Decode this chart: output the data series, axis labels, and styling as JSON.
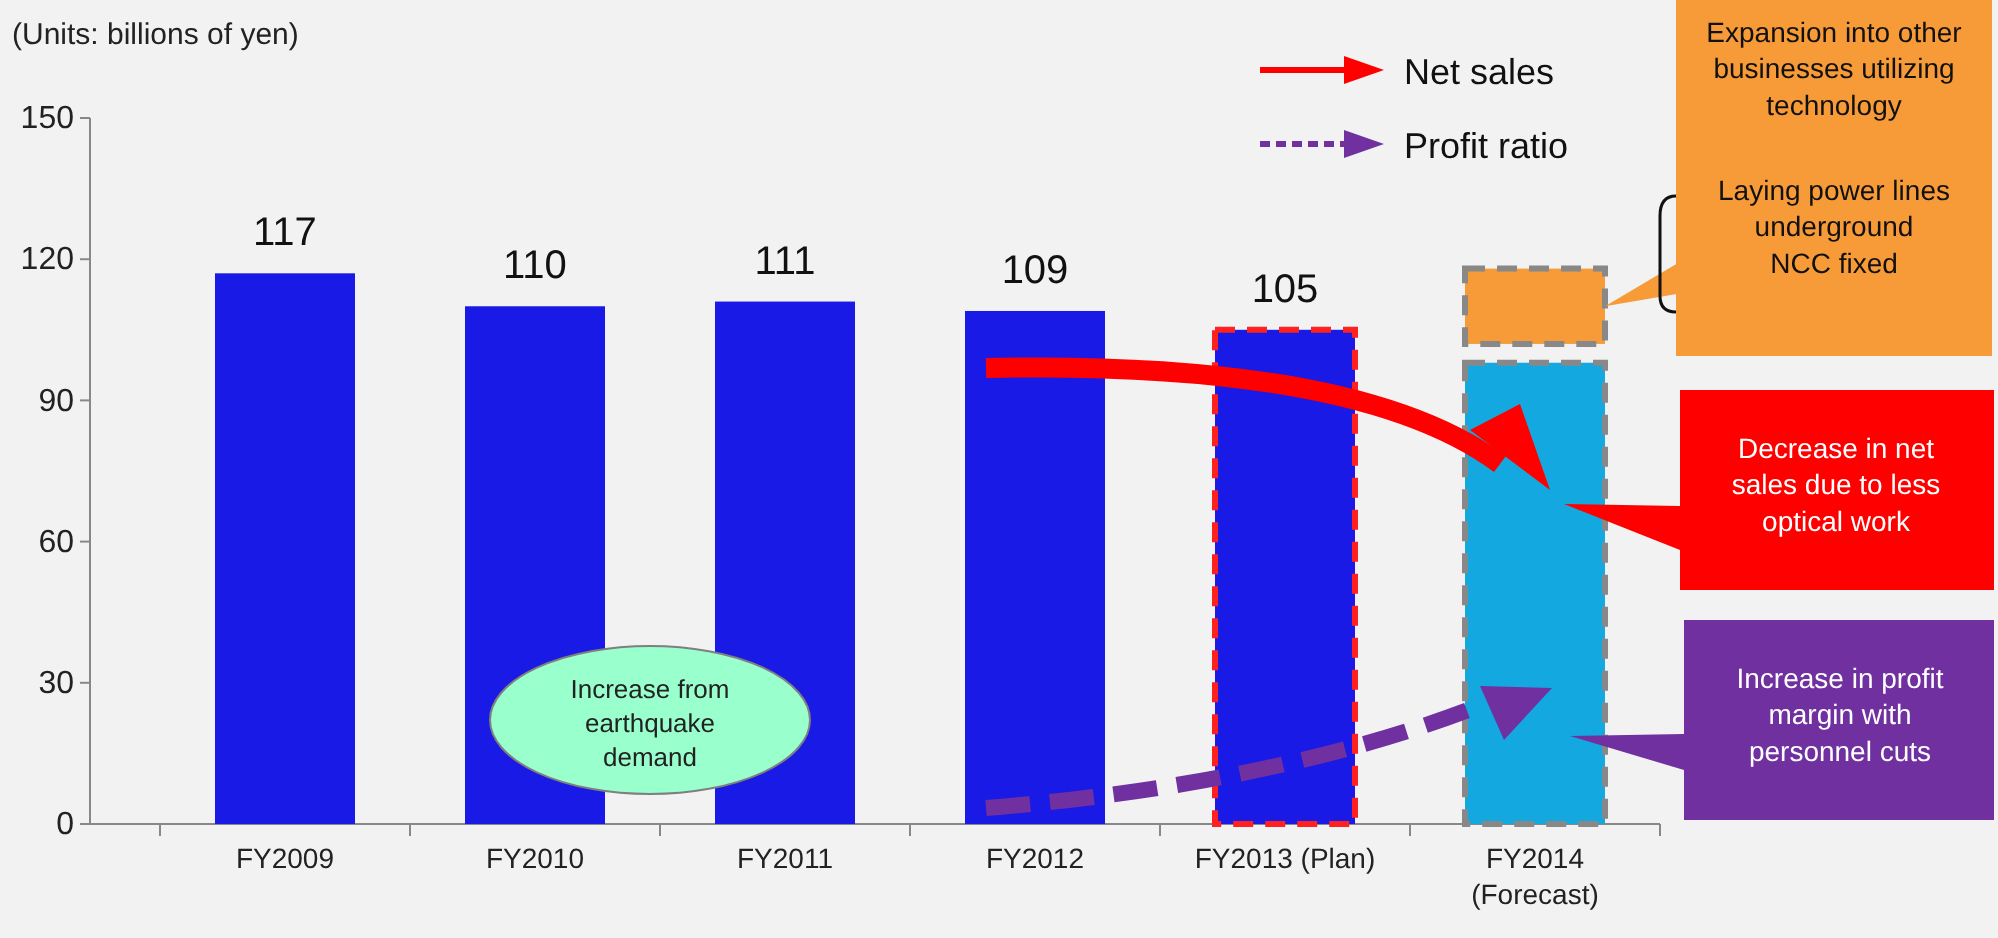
{
  "chart_data": {
    "type": "bar",
    "ylabel": "(Units: billions of yen)",
    "categories": [
      "FY2009",
      "FY2010",
      "FY2011",
      "FY2012",
      "FY2013 (Plan)",
      "FY2014\n(Forecast)"
    ],
    "series": [
      {
        "colors": [
          "#1a1ae6",
          "#1a1ae6",
          "#1a1ae6",
          "#1a1ae6",
          "#1a1ae6",
          "#14a8e0"
        ],
        "values": [
          117,
          110,
          111,
          109,
          105,
          98
        ],
        "value_labels": [
          "117",
          "110",
          "111",
          "109",
          "105",
          null
        ]
      },
      {
        "color": "#f79a38",
        "values": [
          null,
          null,
          null,
          null,
          null,
          16
        ],
        "base": [
          null,
          null,
          null,
          null,
          null,
          102
        ]
      }
    ],
    "ylim": [
      0,
      150
    ],
    "yticks": [
      0,
      30,
      60,
      90,
      120,
      150
    ],
    "annotations": [
      "Net sales",
      "Profit ratio",
      "Expansion into other\nbusinesses utilizing\ntechnology",
      "Laying power lines\nunderground\nNCC fixed",
      "Decrease in net\nsales due to less\noptical work",
      "Increase in profit\nmargin with\npersonnel cuts",
      "Increase from\nearthquake\ndemand"
    ]
  }
}
